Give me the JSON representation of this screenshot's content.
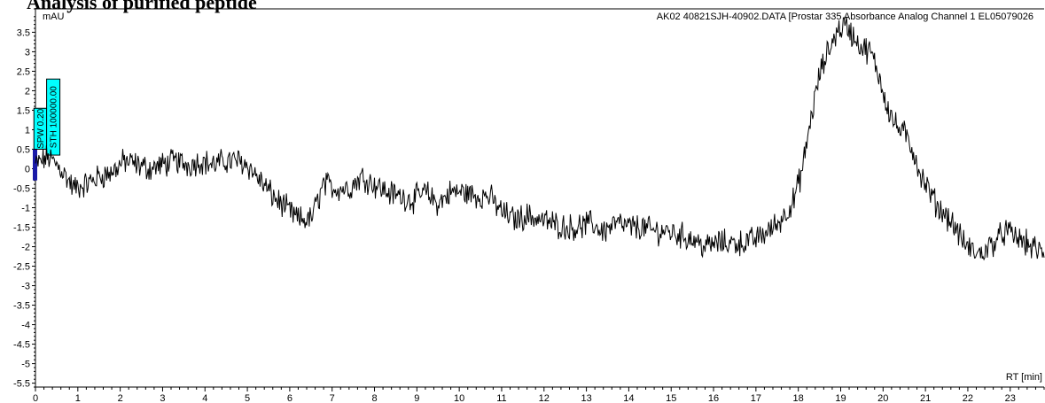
{
  "page": {
    "title_fragment": "Analysis of purified peptide"
  },
  "chart_data": {
    "type": "line",
    "title": "AK02 40821SJH-40902.DATA [Prostar 335 Absorbance Analog Channel 1 EL05079026",
    "ylabel": "mAU",
    "xlabel": "RT [min]",
    "xlim": [
      0,
      23.8
    ],
    "ylim": [
      -5.6,
      4.1
    ],
    "x_ticks": [
      0,
      1,
      2,
      3,
      4,
      5,
      6,
      7,
      8,
      9,
      10,
      11,
      12,
      13,
      14,
      15,
      16,
      17,
      18,
      19,
      20,
      21,
      22,
      23
    ],
    "y_ticks": [
      3.5,
      3,
      2.5,
      2,
      1.5,
      1,
      0.5,
      0,
      -0.5,
      -1,
      -1.5,
      -2,
      -2.5,
      -3,
      -3.5,
      -4,
      -4.5,
      -5,
      -5.5
    ],
    "grid": false,
    "series": [
      {
        "color": "#000000",
        "x": [
          0,
          0.3,
          0.6,
          0.9,
          1.2,
          1.5,
          1.8,
          2.1,
          2.4,
          2.7,
          3.0,
          3.3,
          3.6,
          3.9,
          4.2,
          4.5,
          4.8,
          5.0,
          5.3,
          5.6,
          5.9,
          6.2,
          6.5,
          6.8,
          7.1,
          7.4,
          7.7,
          8.0,
          8.3,
          8.6,
          8.9,
          9.2,
          9.5,
          9.8,
          10.1,
          10.4,
          10.7,
          11.0,
          11.3,
          11.6,
          11.9,
          12.2,
          12.5,
          12.8,
          13.1,
          13.4,
          13.7,
          14.0,
          14.3,
          14.6,
          14.9,
          15.2,
          15.5,
          15.8,
          16.1,
          16.4,
          16.7,
          17.0,
          17.3,
          17.6,
          17.9,
          18.1,
          18.3,
          18.5,
          18.7,
          18.9,
          19.1,
          19.3,
          19.5,
          19.7,
          19.9,
          20.1,
          20.3,
          20.5,
          20.7,
          20.9,
          21.1,
          21.3,
          21.5,
          21.7,
          21.9,
          22.1,
          22.3,
          22.6,
          22.9,
          23.2,
          23.5,
          23.8
        ],
        "y": [
          0.1,
          0.3,
          0.0,
          -0.5,
          -0.4,
          -0.2,
          -0.1,
          0.2,
          0.1,
          0.0,
          0.1,
          0.2,
          0.1,
          0.2,
          0.1,
          0.2,
          0.2,
          0.1,
          -0.3,
          -0.7,
          -1.0,
          -1.3,
          -1.3,
          -0.4,
          -0.5,
          -0.5,
          -0.2,
          -0.4,
          -0.6,
          -0.7,
          -0.8,
          -0.6,
          -0.9,
          -0.6,
          -0.6,
          -0.7,
          -0.7,
          -1.1,
          -1.3,
          -1.2,
          -1.3,
          -1.4,
          -1.5,
          -1.5,
          -1.4,
          -1.6,
          -1.4,
          -1.5,
          -1.5,
          -1.6,
          -1.6,
          -1.7,
          -1.8,
          -2.0,
          -1.9,
          -1.9,
          -1.9,
          -1.8,
          -1.6,
          -1.3,
          -0.8,
          0.0,
          1.3,
          2.4,
          3.0,
          3.5,
          3.7,
          3.4,
          3.1,
          3.0,
          2.4,
          1.6,
          1.1,
          0.9,
          0.5,
          -0.2,
          -0.6,
          -1.0,
          -1.2,
          -1.5,
          -1.9,
          -2.1,
          -2.2,
          -1.9,
          -1.6,
          -1.8,
          -2.0,
          -2.2
        ]
      }
    ],
    "annotations": [
      {
        "text": "SPW 0.20",
        "x": 0.12,
        "y_bottom": 0.5,
        "y_top": 1.55
      },
      {
        "text": "STH 100000.00",
        "x": 0.42,
        "y_bottom": 0.35,
        "y_top": 2.3
      }
    ],
    "marker_color": "#1a1aa8",
    "annotation_color": "#00ffff"
  }
}
